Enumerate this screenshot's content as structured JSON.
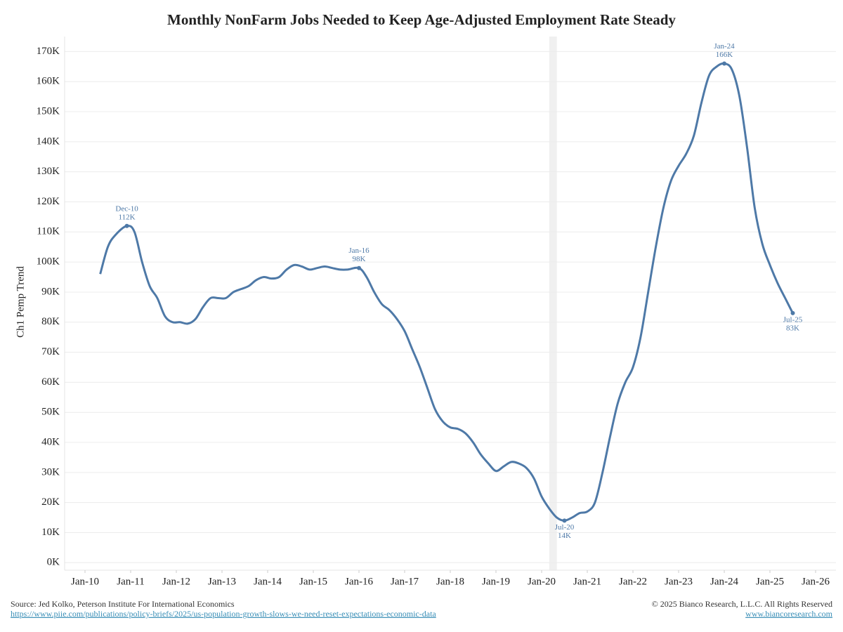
{
  "chart_data": {
    "type": "line",
    "title": "Monthly NonFarm Jobs Needed to Keep Age-Adjusted Employment Rate Steady",
    "y_label": "Ch1 Pemp Trend",
    "x": [
      "May-10",
      "Jul-10",
      "Sep-10",
      "Dec-10",
      "Feb-11",
      "Apr-11",
      "Jun-11",
      "Aug-11",
      "Oct-11",
      "Dec-11",
      "Feb-12",
      "Apr-12",
      "Jun-12",
      "Aug-12",
      "Oct-12",
      "Dec-12",
      "Feb-13",
      "Apr-13",
      "Jun-13",
      "Aug-13",
      "Oct-13",
      "Dec-13",
      "Feb-14",
      "Apr-14",
      "Jun-14",
      "Aug-14",
      "Oct-14",
      "Dec-14",
      "Feb-15",
      "Apr-15",
      "Jun-15",
      "Aug-15",
      "Oct-15",
      "Jan-16",
      "Mar-16",
      "May-16",
      "Jul-16",
      "Sep-16",
      "Nov-16",
      "Jan-17",
      "Mar-17",
      "May-17",
      "Jul-17",
      "Sep-17",
      "Nov-17",
      "Jan-18",
      "Mar-18",
      "May-18",
      "Jul-18",
      "Sep-18",
      "Nov-18",
      "Jan-19",
      "Mar-19",
      "May-19",
      "Jul-19",
      "Sep-19",
      "Nov-19",
      "Jan-20",
      "Mar-20",
      "May-20",
      "Jul-20",
      "Sep-20",
      "Nov-20",
      "Jan-21",
      "Mar-21",
      "May-21",
      "Jul-21",
      "Sep-21",
      "Nov-21",
      "Jan-22",
      "Mar-22",
      "May-22",
      "Jul-22",
      "Sep-22",
      "Nov-22",
      "Jan-23",
      "Mar-23",
      "May-23",
      "Jul-23",
      "Sep-23",
      "Nov-23",
      "Jan-24",
      "Mar-24",
      "May-24",
      "Jul-24",
      "Sep-24",
      "Nov-24",
      "Jan-25",
      "Mar-25",
      "May-25",
      "Jul-25"
    ],
    "series": [
      {
        "color": "#4e79a7",
        "values": [
          96,
          105,
          109,
          112,
          110,
          100,
          92,
          88,
          82,
          80,
          80,
          79.5,
          81,
          85,
          88,
          88,
          88,
          90,
          91,
          92,
          94,
          95,
          94.5,
          95,
          97.5,
          99,
          98.5,
          97.5,
          98,
          98.5,
          98,
          97.5,
          97.5,
          98,
          95,
          90,
          86,
          84,
          81,
          77,
          71,
          65,
          58,
          51,
          47,
          45,
          44.5,
          43,
          40,
          36,
          33,
          30.5,
          32,
          33.5,
          33,
          31.5,
          28,
          22,
          18,
          15,
          14,
          15,
          16.5,
          17,
          20,
          30,
          42,
          53,
          60,
          65,
          75,
          90,
          105,
          118,
          127,
          132,
          136,
          142,
          153,
          162,
          165,
          166,
          164,
          155,
          138,
          118,
          106,
          99,
          93,
          88,
          83
        ]
      }
    ],
    "annotations": [
      {
        "date": "Dec-10",
        "value": 112,
        "label": "112K",
        "position": "above"
      },
      {
        "date": "Jan-16",
        "value": 98,
        "label": "98K",
        "position": "above"
      },
      {
        "date": "Jul-20",
        "value": 14,
        "label": "14K",
        "position": "below"
      },
      {
        "date": "Jan-24",
        "value": 166,
        "label": "166K",
        "position": "above"
      },
      {
        "date": "Jul-25",
        "value": 83,
        "label": "83K",
        "position": "below"
      }
    ],
    "shade": [
      "Mar-20",
      "May-20"
    ],
    "xlim": [
      "Jan-10",
      "Jan-26"
    ],
    "xticks": [
      "Jan-10",
      "Jan-11",
      "Jan-12",
      "Jan-13",
      "Jan-14",
      "Jan-15",
      "Jan-16",
      "Jan-17",
      "Jan-18",
      "Jan-19",
      "Jan-20",
      "Jan-21",
      "Jan-22",
      "Jan-23",
      "Jan-24",
      "Jan-25",
      "Jan-26"
    ],
    "ylim": [
      -2.5,
      175
    ],
    "yticks": [
      {
        "value": 0,
        "label": "0K"
      },
      {
        "value": 10,
        "label": "10K"
      },
      {
        "value": 20,
        "label": "20K"
      },
      {
        "value": 30,
        "label": "30K"
      },
      {
        "value": 40,
        "label": "40K"
      },
      {
        "value": 50,
        "label": "50K"
      },
      {
        "value": 60,
        "label": "60K"
      },
      {
        "value": 70,
        "label": "70K"
      },
      {
        "value": 80,
        "label": "80K"
      },
      {
        "value": 90,
        "label": "90K"
      },
      {
        "value": 100,
        "label": "100K"
      },
      {
        "value": 110,
        "label": "110K"
      },
      {
        "value": 120,
        "label": "120K"
      },
      {
        "value": 130,
        "label": "130K"
      },
      {
        "value": 140,
        "label": "140K"
      },
      {
        "value": 150,
        "label": "150K"
      },
      {
        "value": 160,
        "label": "160K"
      },
      {
        "value": 170,
        "label": "170K"
      }
    ],
    "grid": true
  },
  "footer": {
    "source": "Source: Jed Kolko, Peterson Institute For International Economics",
    "link": "https://www.piie.com/publications/policy-briefs/2025/us-population-growth-slows-we-need-reset-expectations-economic-data",
    "copyright": "© 2025 Bianco Research, L.L.C. All Rights Reserved",
    "website": "www.biancoresearch.com"
  }
}
